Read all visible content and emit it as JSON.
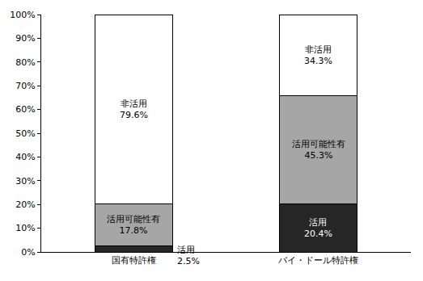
{
  "chart_data": {
    "type": "bar",
    "stacked": true,
    "data_labels": true,
    "grid": false,
    "categories": [
      "国有特許権",
      "バイ・ドール特許権"
    ],
    "series": [
      {
        "name": "活用",
        "color": "#262626",
        "values": [
          2.5,
          20.4
        ],
        "value_labels": [
          "2.5%",
          "20.4%"
        ]
      },
      {
        "name": "活用可能性有",
        "color": "#a6a6a6",
        "values": [
          17.8,
          45.3
        ],
        "value_labels": [
          "17.8%",
          "45.3%"
        ]
      },
      {
        "name": "非活用",
        "color": "#ffffff",
        "values": [
          79.6,
          34.3
        ],
        "value_labels": [
          "79.6%",
          "34.3%"
        ]
      }
    ],
    "ylim": [
      0,
      100
    ],
    "yticks": [
      {
        "value": 0,
        "label": "0%"
      },
      {
        "value": 10,
        "label": "10%"
      },
      {
        "value": 20,
        "label": "20%"
      },
      {
        "value": 30,
        "label": "30%"
      },
      {
        "value": 40,
        "label": "40%"
      },
      {
        "value": 50,
        "label": "50%"
      },
      {
        "value": 60,
        "label": "60%"
      },
      {
        "value": 70,
        "label": "70%"
      },
      {
        "value": 80,
        "label": "80%"
      },
      {
        "value": 90,
        "label": "90%"
      },
      {
        "value": 100,
        "label": "100%"
      }
    ]
  }
}
